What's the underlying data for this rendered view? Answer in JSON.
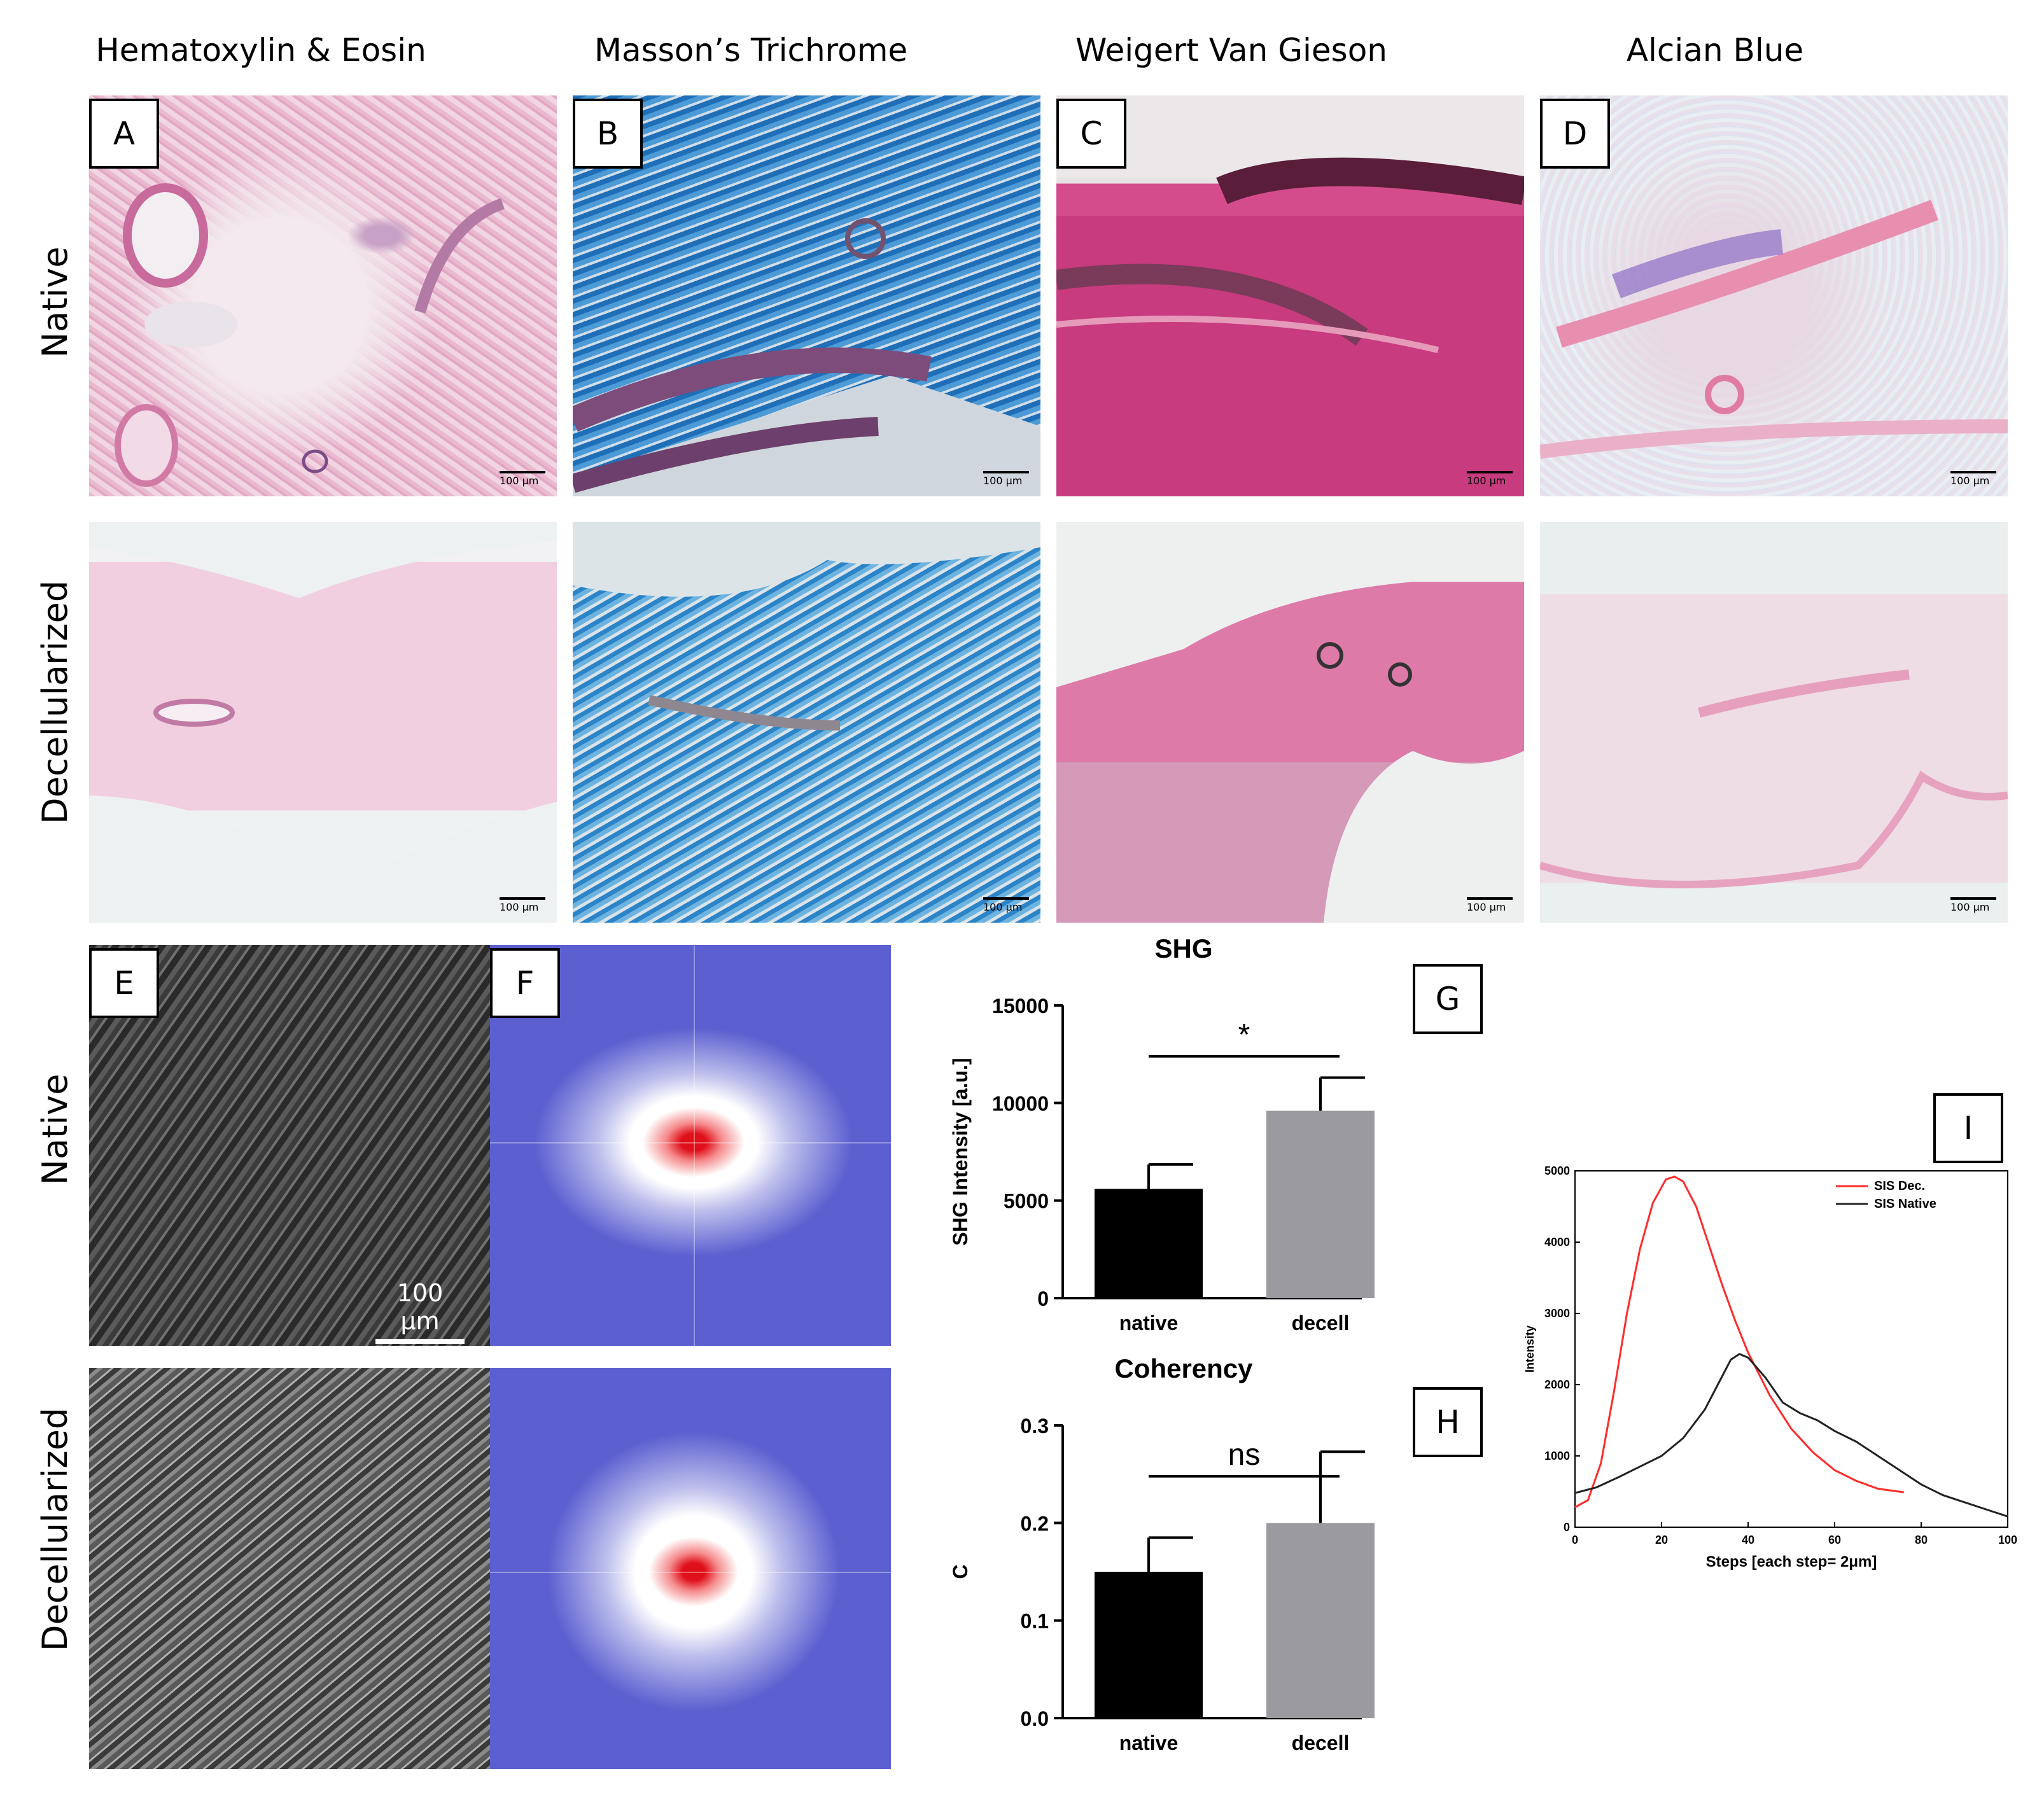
{
  "columns": [
    "Hematoxylin & Eosin",
    "Masson’s Trichrome",
    "Weigert Van Gieson",
    "Alcian Blue"
  ],
  "rows": [
    "Native",
    "Decellularized"
  ],
  "panel_labels": {
    "A": "A",
    "B": "B",
    "C": "C",
    "D": "D",
    "E": "E",
    "F": "F",
    "G": "G",
    "H": "H",
    "I": "I"
  },
  "micro_scale": "100 µm",
  "shg_scale": "100 µm",
  "colors": {
    "native_bar": "#000000",
    "decell_bar": "#9b9a9f",
    "sis_dec": "#ff2b2b",
    "sis_native": "#222222",
    "fft_bg": "#5b5fd0"
  },
  "chart_data": [
    {
      "type": "bar",
      "title": "SHG",
      "categories": [
        "native",
        "decell"
      ],
      "values": [
        5600,
        9600
      ],
      "errors": [
        1250,
        1700
      ],
      "ylabel": "SHG Intensity [a.u.]",
      "xlabel": "",
      "ylim": [
        0,
        15000
      ],
      "yticks": [
        "0",
        "5000",
        "10000",
        "15000"
      ],
      "yticks_num": [
        0,
        5000,
        10000,
        15000
      ],
      "significance": "*"
    },
    {
      "type": "bar",
      "title": "Coherency",
      "categories": [
        "native",
        "decell"
      ],
      "values": [
        0.15,
        0.2
      ],
      "errors": [
        0.035,
        0.073
      ],
      "ylabel": "C",
      "xlabel": "",
      "ylim": [
        0,
        0.3
      ],
      "yticks": [
        "0.0",
        "0.1",
        "0.2",
        "0.3"
      ],
      "yticks_num": [
        0,
        0.1,
        0.2,
        0.3
      ],
      "significance": "ns"
    },
    {
      "type": "line",
      "xlabel": "Steps [each step= 2μm]",
      "ylabel": "Intensity",
      "xlim": [
        0,
        100
      ],
      "ylim": [
        0,
        5000
      ],
      "xticks": [
        "0",
        "20",
        "40",
        "60",
        "80",
        "100"
      ],
      "xticks_num": [
        0,
        20,
        40,
        60,
        80,
        100
      ],
      "yticks": [
        "0",
        "1000",
        "2000",
        "3000",
        "4000",
        "5000"
      ],
      "yticks_num": [
        0,
        1000,
        2000,
        3000,
        4000,
        5000
      ],
      "legend_position": "top-right",
      "series": [
        {
          "name": "SIS Dec.",
          "x": [
            0,
            3,
            6,
            9,
            12,
            15,
            18,
            21,
            23,
            25,
            28,
            31,
            34,
            37,
            40,
            45,
            50,
            55,
            60,
            65,
            70,
            76
          ],
          "y": [
            280,
            380,
            900,
            1900,
            3000,
            3900,
            4550,
            4880,
            4920,
            4850,
            4500,
            3950,
            3400,
            2900,
            2450,
            1850,
            1380,
            1050,
            800,
            650,
            540,
            490
          ]
        },
        {
          "name": "SIS Native",
          "x": [
            0,
            5,
            10,
            15,
            20,
            25,
            30,
            33,
            36,
            38,
            40,
            44,
            48,
            52,
            56,
            60,
            65,
            70,
            75,
            80,
            85,
            90,
            95,
            100
          ],
          "y": [
            480,
            560,
            700,
            850,
            1000,
            1250,
            1650,
            2000,
            2350,
            2430,
            2380,
            2100,
            1750,
            1600,
            1500,
            1350,
            1200,
            1000,
            800,
            600,
            450,
            350,
            250,
            150
          ]
        }
      ]
    }
  ]
}
